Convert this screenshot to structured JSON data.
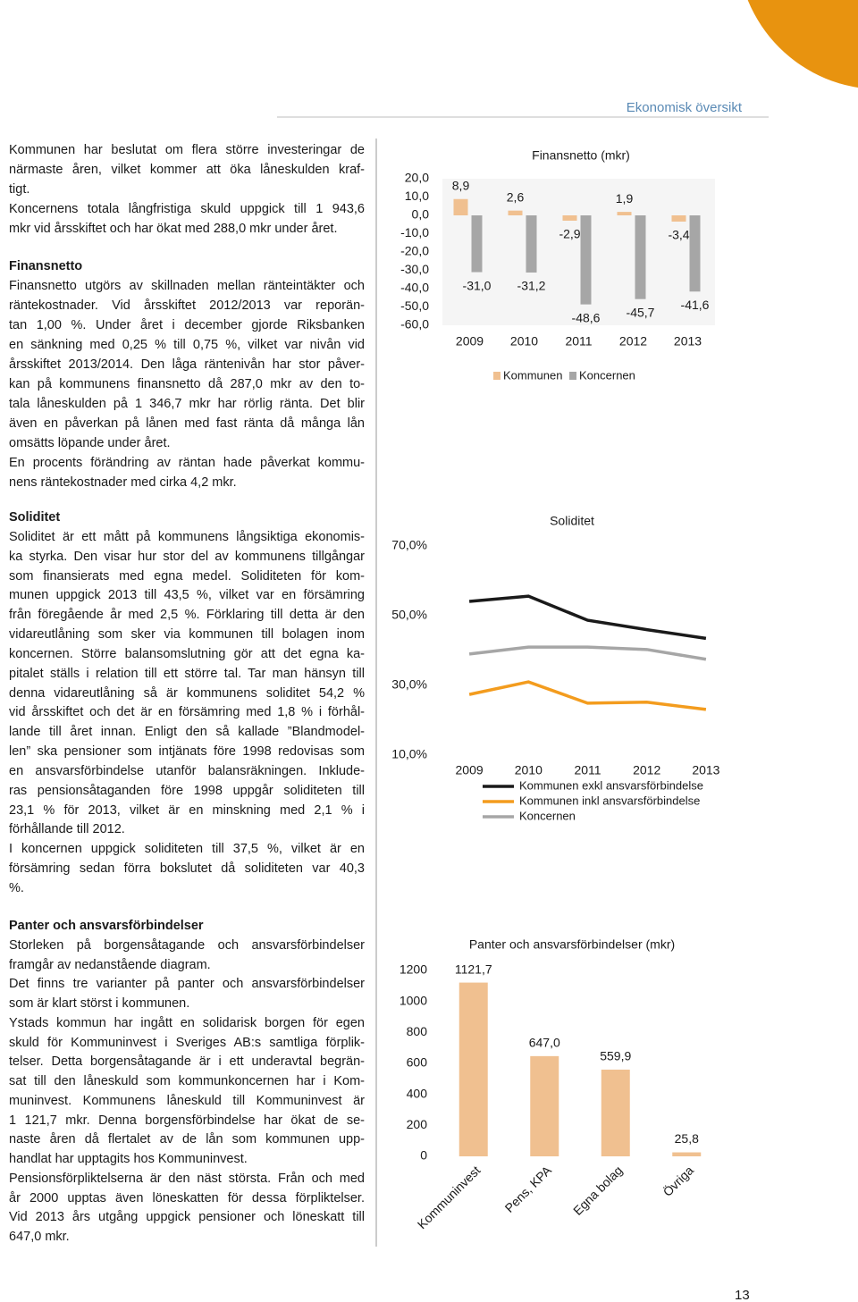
{
  "document": {
    "header": "Ekonomisk översikt",
    "page_number": "13",
    "sections": [
      {
        "paragraphs": [
          [
            "Kommunen har beslutat om flera större investeringar de",
            "närmaste åren, vilket kommer att öka låneskulden kraf-",
            "tigt."
          ],
          [
            "Koncernens totala långfristiga skuld uppgick till 1 943,6",
            "mkr vid årsskiftet och har ökat med 288,0 mkr under året."
          ]
        ]
      },
      {
        "heading": "Finansnetto",
        "paragraphs": [
          [
            "Finansnetto utgörs av skillnaden mellan ränteintäkter och",
            "räntekostnader. Vid årsskiftet 2012/2013 var reporän-",
            "tan 1,00 %. Under året i december gjorde Riksbanken",
            "en sänkning med 0,25 % till 0,75 %, vilket var nivån vid",
            "årsskiftet 2013/2014. Den låga räntenivån har stor påver-",
            "kan på kommunens finansnetto då 287,0 mkr av den to-",
            "tala låneskulden på 1 346,7 mkr har rörlig ränta. Det blir",
            "även en påverkan på lånen med fast ränta då många lån",
            "omsätts löpande under året."
          ],
          [
            "En procents förändring av räntan hade påverkat kommu-",
            "nens räntekostnader med cirka 4,2 mkr."
          ]
        ]
      },
      {
        "heading": "Soliditet",
        "paragraphs": [
          [
            "Soliditet är ett mått på kommunens långsiktiga ekonomis-",
            "ka styrka. Den visar hur stor del av kommunens tillgångar",
            "som finansierats med egna medel. Soliditeten för kom-",
            "munen uppgick 2013 till 43,5 %, vilket var en försämring",
            "från föregående år med 2,5 %. Förklaring till detta är den",
            "vidareutlåning som sker via kommunen till bolagen inom",
            "koncernen. Större balansomslutning gör att det egna ka-",
            "pitalet ställs i relation till ett större tal. Tar man hänsyn till",
            "denna vidareutlåning så är kommunens soliditet 54,2 %",
            "vid årsskiftet och det är en försämring med 1,8 % i förhål-",
            "lande till året innan. Enligt den så kallade ”Blandmodel-",
            "len” ska pensioner som intjänats före 1998 redovisas som",
            "en ansvarsförbindelse utanför balansräkningen. Inklude-",
            "ras pensionsåtaganden före 1998 uppgår soliditeten till",
            "23,1 % för 2013, vilket är en minskning med 2,1 % i",
            "förhållande till 2012."
          ],
          [
            "I koncernen uppgick soliditeten till 37,5 %, vilket är en",
            "försämring sedan förra bokslutet då soliditeten var 40,3",
            "%."
          ]
        ]
      },
      {
        "heading": "Panter och ansvarsförbindelser",
        "paragraphs": [
          [
            "Storleken på borgensåtagande och ansvarsförbindelser",
            "framgår av nedanstående diagram."
          ],
          [
            "Det finns tre varianter på panter och ansvarsförbindelser",
            "som är klart störst i kommunen."
          ],
          [
            "Ystads kommun har ingått en solidarisk borgen för egen",
            "skuld för Kommuninvest i Sveriges AB:s samtliga förplik-",
            "telser. Detta borgensåtagande är i ett underavtal begrän-",
            "sat till den låneskuld som kommunkoncernen har i Kom-",
            "muninvest. Kommunens låneskuld till Kommuninvest är",
            "1 121,7 mkr. Denna borgensförbindelse har ökat de se-",
            "naste åren då flertalet av de lån som kommunen upp-",
            "handlat har upptagits hos Kommuninvest."
          ],
          [
            "Pensionsförpliktelserna är den näst största. Från och med",
            "år 2000 upptas även löneskatten för dessa förpliktelser.",
            "Vid 2013 års utgång uppgick pensioner och löneskatt till",
            "647,0 mkr."
          ]
        ]
      }
    ]
  },
  "chart_data": [
    {
      "type": "bar",
      "title": "Finansnetto (mkr)",
      "categories": [
        "2009",
        "2010",
        "2011",
        "2012",
        "2013"
      ],
      "series": [
        {
          "name": "Kommunen",
          "color": "#f0c090",
          "values": [
            8.9,
            2.6,
            -2.9,
            1.9,
            -3.4
          ],
          "value_labels": [
            "8,9",
            "2,6",
            "-2,9",
            "1,9",
            "-3,4"
          ]
        },
        {
          "name": "Koncernen",
          "color": "#a6a6a6",
          "values": [
            -31.0,
            -31.2,
            -48.6,
            -45.7,
            -41.6
          ],
          "value_labels": [
            "-31,0",
            "-31,2",
            "-48,6",
            "-45,7",
            "-41,6"
          ]
        }
      ],
      "ylim": [
        -60,
        20
      ],
      "yticks": [
        {
          "value": 20,
          "label": "20,0"
        },
        {
          "value": 10,
          "label": "10,0"
        },
        {
          "value": 0,
          "label": "0,0"
        },
        {
          "value": -10,
          "label": "-10,0"
        },
        {
          "value": -20,
          "label": "-20,0"
        },
        {
          "value": -30,
          "label": "-30,0"
        },
        {
          "value": -40,
          "label": "-40,0"
        },
        {
          "value": -50,
          "label": "-50,0"
        },
        {
          "value": -60,
          "label": "-60,0"
        }
      ],
      "grid": false,
      "legend": "bottom"
    },
    {
      "type": "line",
      "title": "Soliditet",
      "categories": [
        "2009",
        "2010",
        "2011",
        "2012",
        "2013"
      ],
      "series": [
        {
          "name": "Kommunen exkl ansvarsförbindelse",
          "color": "#1a1a1a",
          "values": [
            54.1,
            55.6,
            48.7,
            46.0,
            43.5
          ]
        },
        {
          "name": "Kommunen inkl ansvarsförbindelse",
          "color": "#f39c1e",
          "values": [
            27.4,
            31.0,
            24.9,
            25.2,
            23.1
          ]
        },
        {
          "name": "Koncernen",
          "color": "#a6a6a6",
          "values": [
            39.0,
            41.0,
            41.0,
            40.3,
            37.5
          ]
        }
      ],
      "ylim": [
        10,
        70
      ],
      "yticks": [
        {
          "value": 70,
          "label": "70,0%"
        },
        {
          "value": 50,
          "label": "50,0%"
        },
        {
          "value": 30,
          "label": "30,0%"
        },
        {
          "value": 10,
          "label": "10,0%"
        }
      ],
      "grid": false,
      "legend": "bottom"
    },
    {
      "type": "bar",
      "title": "Panter och ansvarsförbindelser (mkr)",
      "categories": [
        "Kommuninvest",
        "Pens, KPA",
        "Egna bolag",
        "Övriga"
      ],
      "values": [
        1121.7,
        647.0,
        559.9,
        25.8
      ],
      "value_labels": [
        "1121,7",
        "647,0",
        "559,9",
        "25,8"
      ],
      "color": "#f0c090",
      "ylim": [
        0,
        1200
      ],
      "yticks": [
        1200,
        1000,
        800,
        600,
        400,
        200,
        0
      ],
      "grid": false
    }
  ]
}
